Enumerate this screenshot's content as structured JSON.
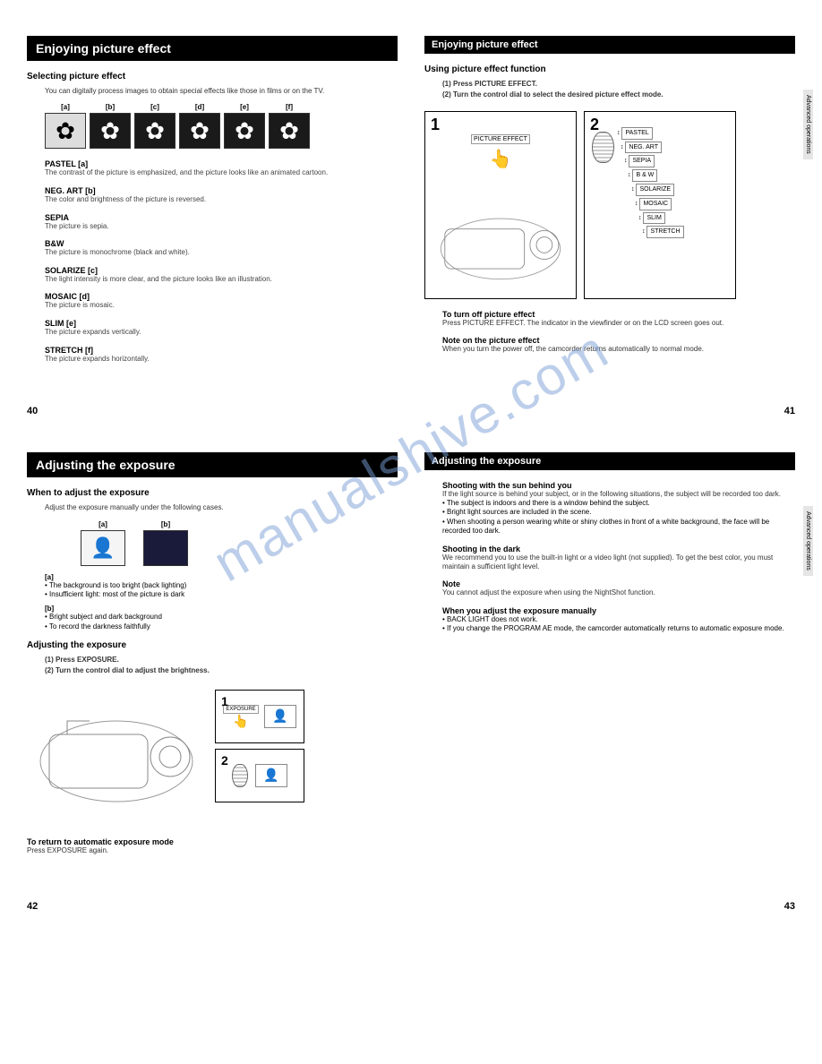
{
  "watermark": "manualshive.com",
  "page_numbers": {
    "p40": "40",
    "p41": "41",
    "p42": "42",
    "p43": "43"
  },
  "side_label": "Advanced operations",
  "page40": {
    "title": "Enjoying picture effect",
    "section": "Selecting picture effect",
    "intro": "You can digitally process images to obtain special effects like those in films or on the TV.",
    "thumbs": [
      "[a]",
      "[b]",
      "[c]",
      "[d]",
      "[e]",
      "[f]"
    ],
    "effects": [
      {
        "name": "PASTEL [a]",
        "desc": "The contrast of the picture is emphasized, and the picture looks like an animated cartoon."
      },
      {
        "name": "NEG. ART [b]",
        "desc": "The color and brightness of the picture is reversed."
      },
      {
        "name": "SEPIA",
        "desc": "The picture is sepia."
      },
      {
        "name": "B&W",
        "desc": "The picture is monochrome (black and white)."
      },
      {
        "name": "SOLARIZE [c]",
        "desc": "The light intensity is more clear, and the picture looks like an illustration."
      },
      {
        "name": "MOSAIC [d]",
        "desc": "The picture is mosaic."
      },
      {
        "name": "SLIM [e]",
        "desc": "The picture expands vertically."
      },
      {
        "name": "STRETCH [f]",
        "desc": "The picture expands horizontally."
      }
    ]
  },
  "page41": {
    "title": "Enjoying picture effect",
    "section": "Using picture effect function",
    "step1": "(1) Press PICTURE EFFECT.",
    "step2": "(2) Turn the control dial to select the desired picture effect mode.",
    "pe_button": "PICTURE EFFECT",
    "menu": [
      "PASTEL",
      "NEG. ART",
      "SEPIA",
      "B & W",
      "SOLARIZE",
      "MOSAIC",
      "SLIM",
      "STRETCH"
    ],
    "turnoff_title": "To turn off picture effect",
    "turnoff_text": "Press PICTURE EFFECT. The indicator in the viewfinder or on the LCD screen goes out.",
    "note_title": "Note on the picture effect",
    "note_text": "When you turn the power off, the camcorder returns automatically to normal mode."
  },
  "page42": {
    "title": "Adjusting the exposure",
    "section1": "When to adjust the exposure",
    "intro": "Adjust the exposure manually under the following cases.",
    "thumb_a": "[a]",
    "thumb_b": "[b]",
    "list_a_label": "[a]",
    "list_a": [
      "The background is too bright (back lighting)",
      "Insufficient light: most of the picture is dark"
    ],
    "list_b_label": "[b]",
    "list_b": [
      "Bright subject and dark background",
      "To record the darkness faithfully"
    ],
    "section2": "Adjusting the exposure",
    "step1": "(1) Press EXPOSURE.",
    "step2": "(2) Turn the control dial to adjust the brightness.",
    "exposure_btn": "EXPOSURE",
    "return_title": "To return to automatic exposure mode",
    "return_text": "Press EXPOSURE again."
  },
  "page43": {
    "title": "Adjusting the exposure",
    "sun_title": "Shooting with the sun behind you",
    "sun_text": "If the light source is behind your subject, or in the following situations, the subject will be recorded too dark.",
    "sun_list": [
      "The subject is indoors and there is a window behind the subject.",
      "Bright light sources are included in the scene.",
      "When shooting a person wearing white or shiny clothes in front of a white background, the face will be recorded too dark."
    ],
    "dark_title": "Shooting in the dark",
    "dark_text": "We recommend you to use the built-in light or a video light (not supplied). To get the best color, you must maintain a sufficient light level.",
    "note_title": "Note",
    "note_text": "You cannot adjust the exposure when using the NightShot function.",
    "manual_title": "When you adjust the exposure manually",
    "manual_list": [
      "BACK LIGHT does not work.",
      "If you change the PROGRAM AE mode, the camcorder automatically returns to automatic exposure mode."
    ]
  }
}
